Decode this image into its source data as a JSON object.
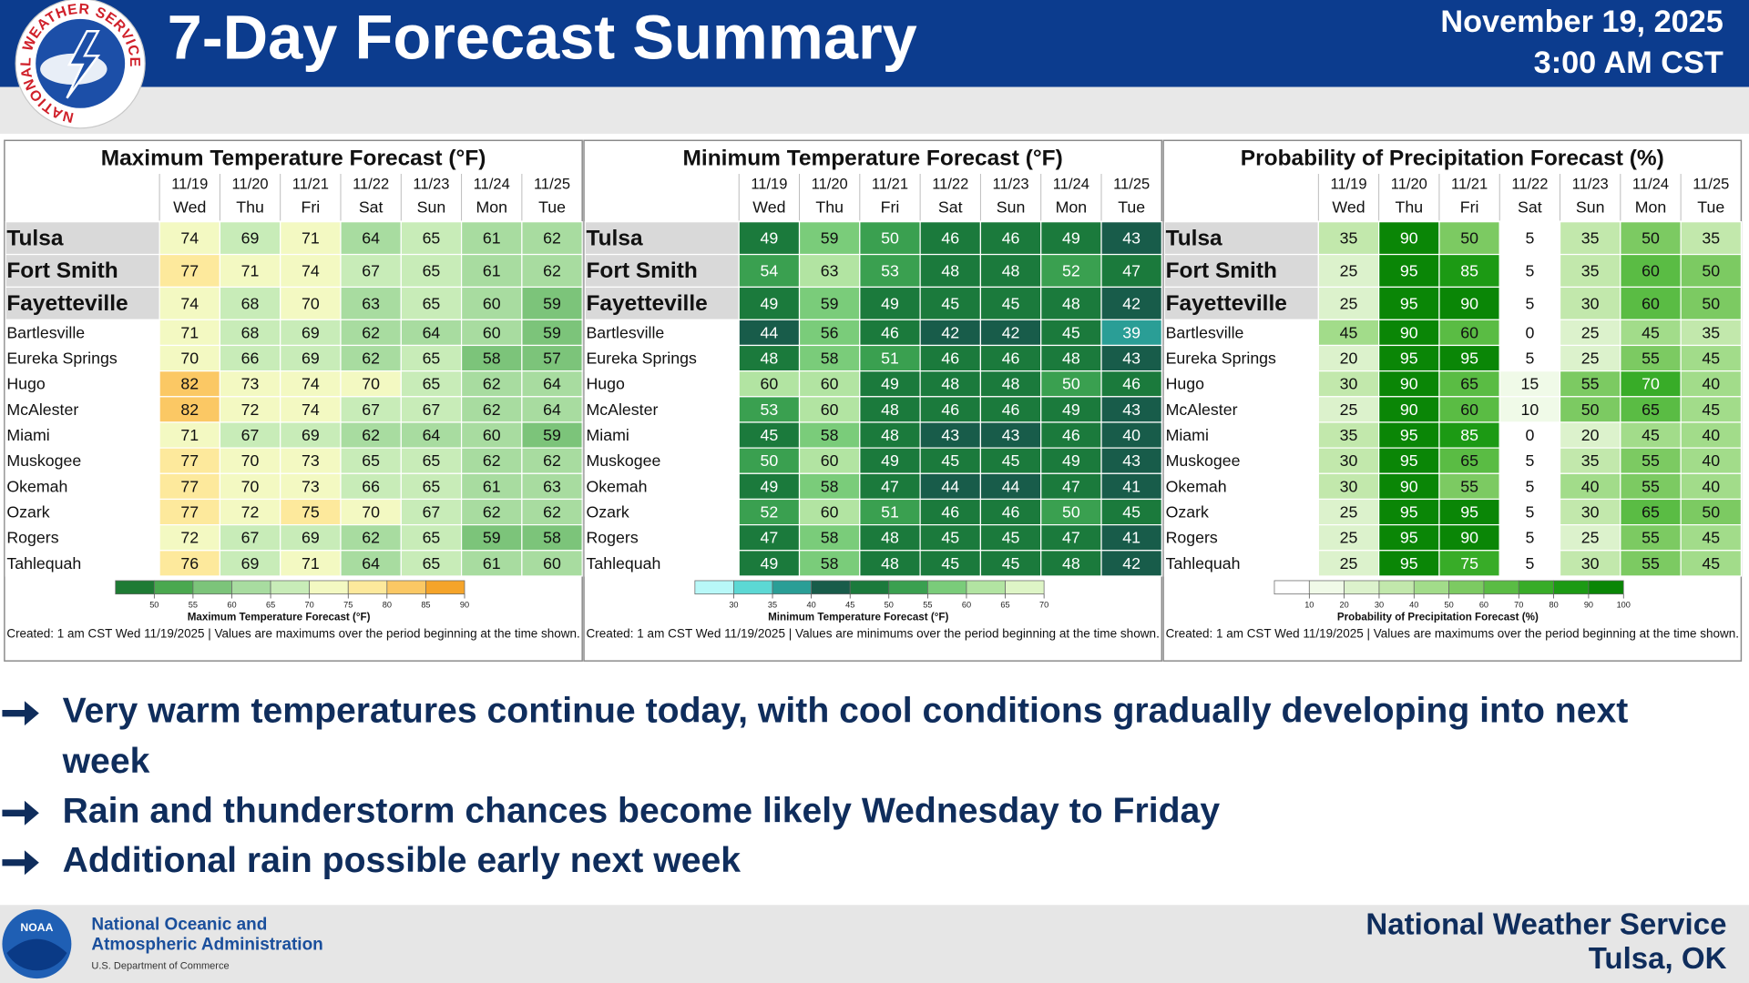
{
  "header": {
    "title": "7-Day Forecast Summary",
    "date": "November 19, 2025",
    "time": "3:00 AM CST",
    "logo_text": "NATIONAL WEATHER SERVICE"
  },
  "panels": [
    {
      "title": "Maximum Temperature Forecast (°F)",
      "dates": [
        "11/19",
        "11/20",
        "11/21",
        "11/22",
        "11/23",
        "11/24",
        "11/25"
      ],
      "days": [
        "Wed",
        "Thu",
        "Fri",
        "Sat",
        "Sun",
        "Mon",
        "Tue"
      ],
      "rows": [
        {
          "city": "Tulsa",
          "values": [
            74,
            69,
            71,
            64,
            65,
            61,
            62
          ]
        },
        {
          "city": "Fort Smith",
          "values": [
            77,
            71,
            74,
            67,
            65,
            61,
            62
          ]
        },
        {
          "city": "Fayetteville",
          "values": [
            74,
            68,
            70,
            63,
            65,
            60,
            59
          ]
        },
        {
          "city": "Bartlesville",
          "values": [
            71,
            68,
            69,
            62,
            64,
            60,
            59
          ]
        },
        {
          "city": "Eureka Springs",
          "values": [
            70,
            66,
            69,
            62,
            65,
            58,
            57
          ]
        },
        {
          "city": "Hugo",
          "values": [
            82,
            73,
            74,
            70,
            65,
            62,
            64
          ]
        },
        {
          "city": "McAlester",
          "values": [
            82,
            72,
            74,
            67,
            67,
            62,
            64
          ]
        },
        {
          "city": "Miami",
          "values": [
            71,
            67,
            69,
            62,
            64,
            60,
            59
          ]
        },
        {
          "city": "Muskogee",
          "values": [
            77,
            70,
            73,
            65,
            65,
            62,
            62
          ]
        },
        {
          "city": "Okemah",
          "values": [
            77,
            70,
            73,
            66,
            65,
            61,
            63
          ]
        },
        {
          "city": "Ozark",
          "values": [
            77,
            72,
            75,
            70,
            67,
            62,
            62
          ]
        },
        {
          "city": "Rogers",
          "values": [
            72,
            67,
            69,
            62,
            65,
            59,
            58
          ]
        },
        {
          "city": "Tahlequah",
          "values": [
            76,
            69,
            71,
            64,
            65,
            61,
            60
          ]
        }
      ],
      "legend": {
        "ticks": [
          50,
          55,
          60,
          65,
          70,
          75,
          80,
          85,
          90
        ],
        "colors": [
          "#1e7b34",
          "#4aa84f",
          "#7cc47a",
          "#a8dca0",
          "#c8ecb8",
          "#f3f9c2",
          "#fde99c",
          "#fbc864",
          "#f5a42a"
        ],
        "label": "Maximum Temperature Forecast (°F)"
      },
      "note": "Created: 1 am CST Wed 11/19/2025  |  Values are maximums over the period beginning at the time shown."
    },
    {
      "title": "Minimum Temperature Forecast (°F)",
      "dates": [
        "11/19",
        "11/20",
        "11/21",
        "11/22",
        "11/23",
        "11/24",
        "11/25"
      ],
      "days": [
        "Wed",
        "Thu",
        "Fri",
        "Sat",
        "Sun",
        "Mon",
        "Tue"
      ],
      "rows": [
        {
          "city": "Tulsa",
          "values": [
            49,
            59,
            50,
            46,
            46,
            49,
            43
          ]
        },
        {
          "city": "Fort Smith",
          "values": [
            54,
            63,
            53,
            48,
            48,
            52,
            47
          ]
        },
        {
          "city": "Fayetteville",
          "values": [
            49,
            59,
            49,
            45,
            45,
            48,
            42
          ]
        },
        {
          "city": "Bartlesville",
          "values": [
            44,
            56,
            46,
            42,
            42,
            45,
            39
          ]
        },
        {
          "city": "Eureka Springs",
          "values": [
            48,
            58,
            51,
            46,
            46,
            48,
            43
          ]
        },
        {
          "city": "Hugo",
          "values": [
            60,
            60,
            49,
            48,
            48,
            50,
            46
          ]
        },
        {
          "city": "McAlester",
          "values": [
            53,
            60,
            48,
            46,
            46,
            49,
            43
          ]
        },
        {
          "city": "Miami",
          "values": [
            45,
            58,
            48,
            43,
            43,
            46,
            40
          ]
        },
        {
          "city": "Muskogee",
          "values": [
            50,
            60,
            49,
            45,
            45,
            49,
            43
          ]
        },
        {
          "city": "Okemah",
          "values": [
            49,
            58,
            47,
            44,
            44,
            47,
            41
          ]
        },
        {
          "city": "Ozark",
          "values": [
            52,
            60,
            51,
            46,
            46,
            50,
            45
          ]
        },
        {
          "city": "Rogers",
          "values": [
            47,
            58,
            48,
            45,
            45,
            47,
            41
          ]
        },
        {
          "city": "Tahlequah",
          "values": [
            49,
            58,
            48,
            45,
            45,
            48,
            42
          ]
        }
      ],
      "legend": {
        "ticks": [
          30,
          35,
          40,
          45,
          50,
          55,
          60,
          65,
          70
        ],
        "colors": [
          "#b8f8f8",
          "#5cd8d4",
          "#2a9e96",
          "#185c4a",
          "#1b7a3c",
          "#3aa050",
          "#7acc7a",
          "#b2e4a2",
          "#def5c6"
        ],
        "label": "Minimum Temperature Forecast (°F)"
      },
      "note": "Created: 1 am CST Wed 11/19/2025  |  Values are minimums over the period beginning at the time shown."
    },
    {
      "title": "Probability of Precipitation Forecast (%)",
      "dates": [
        "11/19",
        "11/20",
        "11/21",
        "11/22",
        "11/23",
        "11/24",
        "11/25"
      ],
      "days": [
        "Wed",
        "Thu",
        "Fri",
        "Sat",
        "Sun",
        "Mon",
        "Tue"
      ],
      "rows": [
        {
          "city": "Tulsa",
          "values": [
            35,
            90,
            50,
            5,
            35,
            50,
            35
          ]
        },
        {
          "city": "Fort Smith",
          "values": [
            25,
            95,
            85,
            5,
            35,
            60,
            50
          ]
        },
        {
          "city": "Fayetteville",
          "values": [
            25,
            95,
            90,
            5,
            30,
            60,
            50
          ]
        },
        {
          "city": "Bartlesville",
          "values": [
            45,
            90,
            60,
            0,
            25,
            45,
            35
          ]
        },
        {
          "city": "Eureka Springs",
          "values": [
            20,
            95,
            95,
            5,
            25,
            55,
            45
          ]
        },
        {
          "city": "Hugo",
          "values": [
            30,
            90,
            65,
            15,
            55,
            70,
            40
          ]
        },
        {
          "city": "McAlester",
          "values": [
            25,
            90,
            60,
            10,
            50,
            65,
            45
          ]
        },
        {
          "city": "Miami",
          "values": [
            35,
            95,
            85,
            0,
            20,
            45,
            40
          ]
        },
        {
          "city": "Muskogee",
          "values": [
            30,
            95,
            65,
            5,
            35,
            55,
            40
          ]
        },
        {
          "city": "Okemah",
          "values": [
            30,
            90,
            55,
            5,
            40,
            55,
            40
          ]
        },
        {
          "city": "Ozark",
          "values": [
            25,
            95,
            95,
            5,
            30,
            65,
            50
          ]
        },
        {
          "city": "Rogers",
          "values": [
            25,
            95,
            90,
            5,
            25,
            55,
            45
          ]
        },
        {
          "city": "Tahlequah",
          "values": [
            25,
            95,
            75,
            5,
            30,
            55,
            45
          ]
        }
      ],
      "legend": {
        "ticks": [
          10,
          20,
          30,
          40,
          50,
          60,
          70,
          80,
          90,
          100
        ],
        "colors": [
          "#ffffff",
          "#f0fae8",
          "#dcf2cc",
          "#c2e8ac",
          "#a2dc8a",
          "#7cca62",
          "#5abc44",
          "#38ac28",
          "#1c9a14",
          "#0a8606"
        ],
        "label": "Probability of Precipitation Forecast (%)"
      },
      "note": "Created: 1 am CST Wed 11/19/2025  |  Values are maximums over the period beginning at the time shown."
    }
  ],
  "bullets": [
    "Very warm temperatures continue today, with cool conditions gradually developing into next week",
    "Rain and thunderstorm chances become likely Wednesday to Friday",
    "Additional rain possible early next week"
  ],
  "footer": {
    "noaa_logo": "NOAA",
    "noaa_line1": "National Oceanic and",
    "noaa_line2": "Atmospheric Administration",
    "noaa_line3": "U.S. Department of Commerce",
    "nws": "National Weather Service",
    "office": "Tulsa, OK"
  }
}
